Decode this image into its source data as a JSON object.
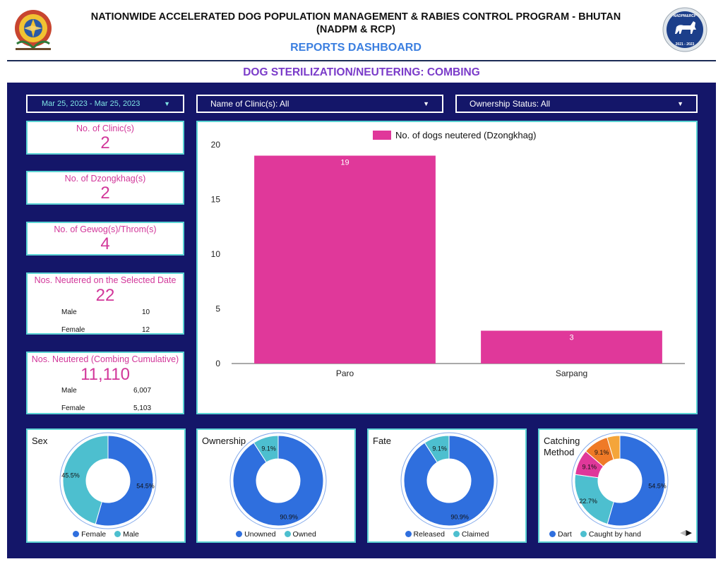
{
  "header": {
    "title_line1": "NATIONWIDE ACCELERATED DOG POPULATION MANAGEMENT & RABIES CONTROL PROGRAM - BHUTAN",
    "title_line2": "(NADPM & RCP)",
    "dashboard": "REPORTS DASHBOARD",
    "badge_years": "2021 - 2023",
    "badge_text": "NADPM&RCP"
  },
  "subtitle": "DOG STERILIZATION/NEUTERING: COMBING",
  "filters": {
    "date": "Mar 25, 2023 - Mar 25, 2023",
    "clinic": "Name of Clinic(s): All",
    "ownership": "Ownership Status: All"
  },
  "cards": {
    "clinics": {
      "label": "No. of Clinic(s)",
      "value": "2"
    },
    "dzongkhags": {
      "label": "No. of Dzongkhag(s)",
      "value": "2"
    },
    "gewogs": {
      "label": "No. of Gewog(s)/Throm(s)",
      "value": "4"
    },
    "selected": {
      "label": "Nos. Neutered on the Selected Date",
      "value": "22",
      "male_label": "Male",
      "male": "10",
      "female_label": "Female",
      "female": "12"
    },
    "cumulative": {
      "label": "Nos. Neutered (Combing Cumulative)",
      "value": "11,110",
      "male_label": "Male",
      "male": "6,007",
      "female_label": "Female",
      "female": "5,103"
    }
  },
  "chart_data": {
    "type": "bar",
    "categories": [
      "Paro",
      "Sarpang"
    ],
    "series": [
      {
        "name": "No. of dogs neutered (Dzongkhag)",
        "values": [
          19,
          3
        ],
        "color": "#e0389a"
      }
    ],
    "yticks": [
      "0",
      "5",
      "10",
      "15",
      "20"
    ],
    "ylim": [
      0,
      20
    ],
    "data_labels": [
      "19",
      "3"
    ],
    "legend": "top"
  },
  "pies": {
    "sex": {
      "title": "Sex",
      "slices": [
        {
          "name": "Female",
          "value": 54.5,
          "label": "54.5%",
          "color": "#2f6fde"
        },
        {
          "name": "Male",
          "value": 45.5,
          "label": "45.5%",
          "color": "#4dbfcf"
        }
      ]
    },
    "ownership": {
      "title": "Ownership",
      "slices": [
        {
          "name": "Unowned",
          "value": 90.9,
          "label": "90.9%",
          "color": "#2f6fde"
        },
        {
          "name": "Owned",
          "value": 9.1,
          "label": "9.1%",
          "color": "#4dbfcf"
        }
      ]
    },
    "fate": {
      "title": "Fate",
      "slices": [
        {
          "name": "Released",
          "value": 90.9,
          "label": "90.9%",
          "color": "#2f6fde"
        },
        {
          "name": "Claimed",
          "value": 9.1,
          "label": "9.1%",
          "color": "#4dbfcf"
        }
      ]
    },
    "catching": {
      "title_line1": "Catching",
      "title_line2": "Method",
      "slices": [
        {
          "name": "Dart",
          "value": 54.5,
          "label": "54.5%",
          "color": "#2f6fde"
        },
        {
          "name": "Caught by hand",
          "value": 22.7,
          "label": "22.7%",
          "color": "#4dbfcf"
        },
        {
          "name": "",
          "value": 9.1,
          "label": "9.1%",
          "color": "#e0389a"
        },
        {
          "name": "",
          "value": 9.1,
          "label": "9.1%",
          "color": "#ef7a27"
        },
        {
          "name": "",
          "value": 4.6,
          "label": "",
          "color": "#f4a53a"
        }
      ]
    }
  }
}
